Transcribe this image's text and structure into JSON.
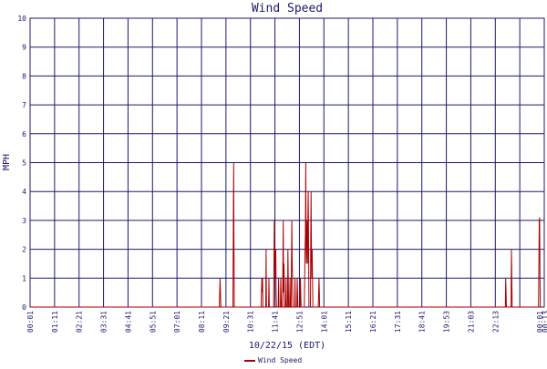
{
  "chart_data": {
    "type": "line",
    "title": "Wind Speed",
    "xlabel": "10/22/15 (EDT)",
    "ylabel": "MPH",
    "ylim": [
      0,
      10
    ],
    "y_ticks": [
      "0",
      "1",
      "2",
      "3",
      "4",
      "5",
      "6",
      "7",
      "8",
      "9",
      "10"
    ],
    "x_ticks": [
      "00:01",
      "01:11",
      "02:21",
      "03:31",
      "04:41",
      "05:51",
      "07:01",
      "08:11",
      "09:21",
      "10:31",
      "11:41",
      "12:51",
      "14:01",
      "15:11",
      "16:21",
      "17:31",
      "18:41",
      "19:53",
      "21:03",
      "22:13",
      "00:01",
      "00:13"
    ],
    "grid": true,
    "legend_position": "bottom-center",
    "colors": {
      "series": "#aa0000",
      "grid": "#1a1a6e",
      "text": "#1a1a6e"
    },
    "series": [
      {
        "name": "Wind Speed",
        "points": [
          [
            0,
            0
          ],
          [
            530,
            0
          ],
          [
            531,
            0.5
          ],
          [
            532,
            1
          ],
          [
            533,
            0.5
          ],
          [
            534,
            0
          ],
          [
            568,
            0
          ],
          [
            569,
            2.5
          ],
          [
            570,
            5
          ],
          [
            571,
            2.5
          ],
          [
            572,
            0
          ],
          [
            647,
            0
          ],
          [
            648,
            0.5
          ],
          [
            649,
            1
          ],
          [
            650,
            0.5
          ],
          [
            651,
            1
          ],
          [
            652,
            0
          ],
          [
            660,
            0
          ],
          [
            661,
            2
          ],
          [
            662,
            0
          ],
          [
            668,
            0
          ],
          [
            669,
            1
          ],
          [
            670,
            0
          ],
          [
            682,
            0
          ],
          [
            683,
            1.5
          ],
          [
            684,
            3
          ],
          [
            685,
            1.5
          ],
          [
            686,
            2
          ],
          [
            687,
            1
          ],
          [
            688,
            2
          ],
          [
            689,
            0.5
          ],
          [
            690,
            0
          ],
          [
            695,
            0
          ],
          [
            696,
            1
          ],
          [
            697,
            0
          ],
          [
            701,
            0
          ],
          [
            702,
            1
          ],
          [
            703,
            0.5
          ],
          [
            704,
            0
          ],
          [
            707,
            0
          ],
          [
            708,
            1.5
          ],
          [
            709,
            3
          ],
          [
            710,
            0.5
          ],
          [
            711,
            1.5
          ],
          [
            712,
            0.5
          ],
          [
            713,
            0
          ],
          [
            716,
            0
          ],
          [
            717,
            1
          ],
          [
            718,
            0
          ],
          [
            721,
            0
          ],
          [
            722,
            2
          ],
          [
            723,
            1
          ],
          [
            724,
            0
          ],
          [
            727,
            0
          ],
          [
            728,
            1
          ],
          [
            729,
            0
          ],
          [
            731,
            0
          ],
          [
            732,
            1.5
          ],
          [
            733,
            3
          ],
          [
            734,
            1.5
          ],
          [
            735,
            1
          ],
          [
            736,
            0
          ],
          [
            741,
            0
          ],
          [
            742,
            1
          ],
          [
            743,
            0
          ],
          [
            747,
            0
          ],
          [
            748,
            1
          ],
          [
            749,
            0.5
          ],
          [
            750,
            0
          ],
          [
            756,
            0
          ],
          [
            757,
            1
          ],
          [
            758,
            0.5
          ],
          [
            759,
            0
          ],
          [
            768,
            0
          ],
          [
            769,
            1
          ],
          [
            770,
            2
          ],
          [
            771,
            2.5
          ],
          [
            772,
            5
          ],
          [
            773,
            2
          ],
          [
            774,
            1.5
          ],
          [
            775,
            2.5
          ],
          [
            776,
            3
          ],
          [
            777,
            1.5
          ],
          [
            778,
            3
          ],
          [
            779,
            4
          ],
          [
            780,
            2
          ],
          [
            781,
            0
          ],
          [
            785,
            0
          ],
          [
            786,
            2
          ],
          [
            787,
            4
          ],
          [
            788,
            2
          ],
          [
            789,
            1
          ],
          [
            790,
            2
          ],
          [
            791,
            1
          ],
          [
            792,
            0
          ],
          [
            807,
            0
          ],
          [
            808,
            0.5
          ],
          [
            809,
            1
          ],
          [
            810,
            0.5
          ],
          [
            811,
            0
          ],
          [
            1331,
            0
          ],
          [
            1332,
            1
          ],
          [
            1333,
            0.5
          ],
          [
            1334,
            0
          ],
          [
            1347,
            0
          ],
          [
            1348,
            2
          ],
          [
            1349,
            1
          ],
          [
            1350,
            0
          ],
          [
            1424,
            0
          ],
          [
            1425,
            1.5
          ],
          [
            1426,
            3
          ],
          [
            1427,
            3.1
          ],
          [
            1428,
            1
          ],
          [
            1429,
            0
          ],
          [
            1432,
            0
          ]
        ]
      }
    ]
  }
}
